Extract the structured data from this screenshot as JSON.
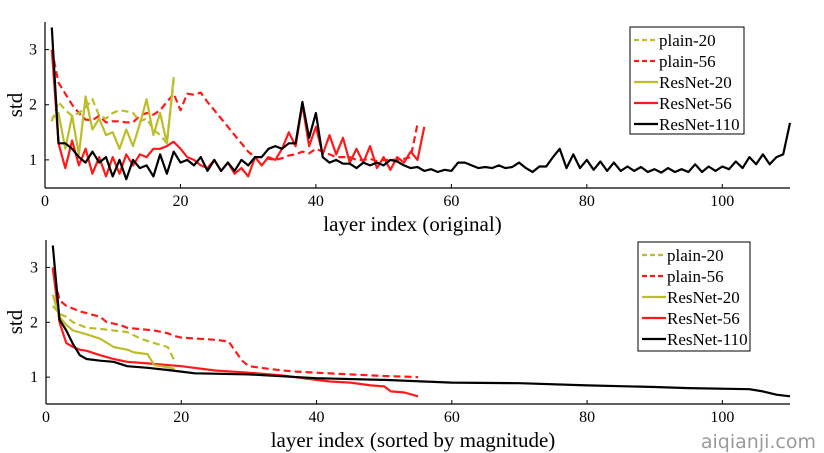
{
  "colors": {
    "olive": "#bdbd2a",
    "red": "#ff1a1a",
    "black": "#000000"
  },
  "watermark": "aiqianji.com",
  "chart_data": [
    {
      "type": "line",
      "xlabel": "layer index (original)",
      "ylabel": "std",
      "xlim": [
        0,
        110
      ],
      "ylim": [
        0.49,
        3.5
      ],
      "xticks": [
        0,
        20,
        40,
        60,
        80,
        100
      ],
      "yticks": [
        1,
        2,
        3
      ],
      "grid": false,
      "legend": "top-right",
      "series": [
        {
          "name": "plain-20",
          "color": "#bdbd2a",
          "dash": true,
          "y": [
            1.7,
            2.05,
            1.9,
            1.8,
            1.85,
            1.95,
            2.1,
            1.8,
            1.75,
            1.85,
            1.9,
            1.88,
            1.85,
            1.7,
            1.75,
            1.55,
            1.45,
            1.3,
            2.45
          ]
        },
        {
          "name": "plain-56",
          "color": "#ff1a1a",
          "dash": true,
          "y": [
            3.0,
            2.4,
            2.2,
            2.0,
            1.85,
            1.73,
            1.72,
            1.8,
            1.68,
            1.7,
            1.7,
            1.68,
            1.68,
            1.8,
            1.85,
            1.82,
            1.9,
            2.05,
            2.2,
            1.9,
            2.2,
            2.18,
            2.22,
            2.05,
            1.9,
            1.75,
            1.6,
            1.45,
            1.3,
            1.15,
            1.05,
            1.05,
            1.02,
            1.0,
            1.03,
            1.08,
            1.1,
            1.15,
            1.12,
            1.2,
            1.15,
            1.1,
            1.05,
            1.05,
            1.05,
            1.0,
            1.0,
            1.02,
            0.98,
            1.0,
            1.0,
            1.0,
            1.02,
            1.05,
            1.65
          ]
        },
        {
          "name": "ResNet-20",
          "color": "#bdbd2a",
          "dash": false,
          "y": [
            1.75,
            1.85,
            1.2,
            1.8,
            1.1,
            2.15,
            1.55,
            1.75,
            1.45,
            1.5,
            1.2,
            1.55,
            1.25,
            1.65,
            2.1,
            1.45,
            1.85,
            1.3,
            2.5
          ]
        },
        {
          "name": "ResNet-56",
          "color": "#ff1a1a",
          "dash": false,
          "y": [
            3.0,
            1.3,
            0.85,
            1.35,
            0.9,
            1.2,
            0.75,
            1.05,
            0.7,
            1.05,
            0.75,
            1.1,
            0.9,
            1.1,
            1.05,
            1.2,
            1.2,
            1.25,
            1.33,
            1.2,
            1.05,
            1.0,
            0.9,
            0.85,
            1.0,
            0.8,
            0.95,
            0.75,
            0.85,
            0.7,
            1.05,
            0.9,
            1.05,
            1.0,
            1.2,
            1.5,
            1.25,
            2.0,
            1.25,
            1.6,
            1.1,
            1.45,
            1.1,
            1.4,
            0.95,
            1.2,
            0.95,
            1.25,
            0.85,
            1.05,
            0.82,
            1.05,
            0.95,
            1.15,
            1.0,
            1.6
          ]
        },
        {
          "name": "ResNet-110",
          "color": "#000000",
          "dash": false,
          "y": [
            3.4,
            1.3,
            1.3,
            1.2,
            1.05,
            0.95,
            1.15,
            0.95,
            1.05,
            0.7,
            1.0,
            0.65,
            1.0,
            0.85,
            0.9,
            0.7,
            1.1,
            0.75,
            1.15,
            0.95,
            1.0,
            0.9,
            1.05,
            0.8,
            1.0,
            0.8,
            0.95,
            0.8,
            1.0,
            0.9,
            1.05,
            1.05,
            1.2,
            1.25,
            1.2,
            1.3,
            1.3,
            2.05,
            1.4,
            1.85,
            1.05,
            0.95,
            1.0,
            0.93,
            0.93,
            0.85,
            0.95,
            0.9,
            0.95,
            0.9,
            1.0,
            0.97,
            0.9,
            0.85,
            0.87,
            0.8,
            0.83,
            0.78,
            0.82,
            0.8,
            0.95,
            0.95,
            0.9,
            0.85,
            0.87,
            0.85,
            0.9,
            0.85,
            0.87,
            0.95,
            0.85,
            0.78,
            0.88,
            0.88,
            1.05,
            1.2,
            0.85,
            1.1,
            0.85,
            1.0,
            0.82,
            0.97,
            0.8,
            0.95,
            0.8,
            0.88,
            0.8,
            0.87,
            0.78,
            0.83,
            0.77,
            0.85,
            0.78,
            0.83,
            0.78,
            0.92,
            0.78,
            0.88,
            0.8,
            0.88,
            0.83,
            0.97,
            0.85,
            1.05,
            0.92,
            1.1,
            0.92,
            1.05,
            1.1,
            1.67
          ]
        }
      ]
    },
    {
      "type": "line",
      "xlabel": "layer index (sorted by magnitude)",
      "ylabel": "std",
      "xlim": [
        0,
        110
      ],
      "ylim": [
        0.51,
        3.5
      ],
      "xticks": [
        0,
        20,
        40,
        60,
        80,
        100
      ],
      "yticks": [
        1,
        2,
        3
      ],
      "grid": false,
      "legend": "top-right",
      "series": [
        {
          "name": "plain-20",
          "color": "#bdbd2a",
          "dash": true,
          "points": [
            [
              1,
              2.3
            ],
            [
              2,
              2.15
            ],
            [
              3,
              2.1
            ],
            [
              4,
              2.0
            ],
            [
              5,
              1.95
            ],
            [
              6,
              1.9
            ],
            [
              8,
              1.88
            ],
            [
              10,
              1.85
            ],
            [
              12,
              1.82
            ],
            [
              14,
              1.7
            ],
            [
              16,
              1.62
            ],
            [
              18,
              1.55
            ],
            [
              19,
              1.3
            ]
          ]
        },
        {
          "name": "plain-56",
          "color": "#ff1a1a",
          "dash": true,
          "points": [
            [
              1,
              2.95
            ],
            [
              2,
              2.4
            ],
            [
              3,
              2.3
            ],
            [
              5,
              2.2
            ],
            [
              8,
              2.1
            ],
            [
              9,
              2.0
            ],
            [
              11,
              1.95
            ],
            [
              12,
              1.9
            ],
            [
              16,
              1.85
            ],
            [
              18,
              1.8
            ],
            [
              19,
              1.75
            ],
            [
              20,
              1.72
            ],
            [
              25,
              1.68
            ],
            [
              27,
              1.65
            ],
            [
              29,
              1.3
            ],
            [
              30,
              1.2
            ],
            [
              33,
              1.15
            ],
            [
              35,
              1.12
            ],
            [
              37,
              1.1
            ],
            [
              40,
              1.08
            ],
            [
              45,
              1.05
            ],
            [
              50,
              1.02
            ],
            [
              55,
              1.0
            ]
          ]
        },
        {
          "name": "ResNet-20",
          "color": "#bdbd2a",
          "dash": false,
          "points": [
            [
              1,
              2.5
            ],
            [
              2,
              2.1
            ],
            [
              3,
              1.95
            ],
            [
              4,
              1.85
            ],
            [
              6,
              1.78
            ],
            [
              8,
              1.7
            ],
            [
              10,
              1.55
            ],
            [
              12,
              1.5
            ],
            [
              13,
              1.45
            ],
            [
              15,
              1.42
            ],
            [
              16,
              1.22
            ],
            [
              18,
              1.18
            ],
            [
              19,
              1.15
            ]
          ]
        },
        {
          "name": "ResNet-56",
          "color": "#ff1a1a",
          "dash": false,
          "points": [
            [
              1,
              3.0
            ],
            [
              2,
              2.0
            ],
            [
              3,
              1.62
            ],
            [
              4,
              1.55
            ],
            [
              5,
              1.5
            ],
            [
              6,
              1.48
            ],
            [
              8,
              1.4
            ],
            [
              10,
              1.33
            ],
            [
              12,
              1.28
            ],
            [
              15,
              1.25
            ],
            [
              20,
              1.2
            ],
            [
              25,
              1.12
            ],
            [
              30,
              1.08
            ],
            [
              35,
              1.03
            ],
            [
              40,
              0.95
            ],
            [
              42,
              0.92
            ],
            [
              45,
              0.9
            ],
            [
              48,
              0.85
            ],
            [
              50,
              0.83
            ],
            [
              51,
              0.74
            ],
            [
              53,
              0.72
            ],
            [
              55,
              0.65
            ]
          ]
        },
        {
          "name": "ResNet-110",
          "color": "#000000",
          "dash": false,
          "points": [
            [
              1,
              3.4
            ],
            [
              2,
              2.05
            ],
            [
              3,
              1.85
            ],
            [
              4,
              1.6
            ],
            [
              5,
              1.4
            ],
            [
              6,
              1.33
            ],
            [
              8,
              1.3
            ],
            [
              10,
              1.28
            ],
            [
              12,
              1.2
            ],
            [
              15,
              1.17
            ],
            [
              18,
              1.13
            ],
            [
              20,
              1.1
            ],
            [
              22,
              1.07
            ],
            [
              30,
              1.05
            ],
            [
              40,
              0.98
            ],
            [
              50,
              0.95
            ],
            [
              60,
              0.9
            ],
            [
              70,
              0.89
            ],
            [
              80,
              0.85
            ],
            [
              90,
              0.82
            ],
            [
              95,
              0.8
            ],
            [
              104,
              0.78
            ],
            [
              106,
              0.74
            ],
            [
              108,
              0.68
            ],
            [
              110,
              0.65
            ]
          ]
        }
      ]
    }
  ]
}
